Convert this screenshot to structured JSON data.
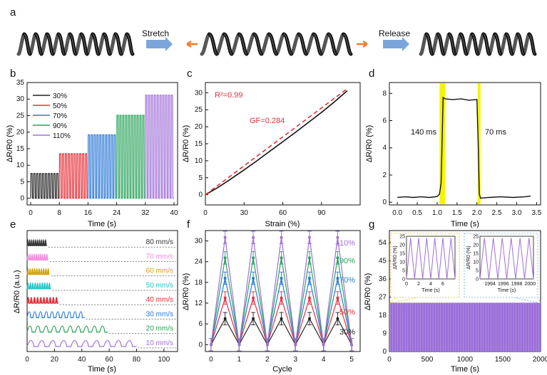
{
  "colors": {
    "black": "#222222",
    "red": "#e8303a",
    "blue": "#2a78d6",
    "green": "#28a35a",
    "purple": "#a070d8",
    "arrow_blue": "#7aa6dc",
    "arrow_orange": "#ef7d2e",
    "highlight": "#f5f500",
    "g_fill": "#9b6ed8",
    "e_colors": [
      "#333333",
      "#f08ee0",
      "#d4a000",
      "#20c6c6",
      "#e8303a",
      "#2a78d6",
      "#28a35a",
      "#a070d8"
    ]
  },
  "panel_a": {
    "label": "a",
    "stretch_label": "Stretch",
    "release_label": "Release"
  },
  "chart_data": [
    {
      "panel": "b",
      "type": "line",
      "xlabel": "Time (s)",
      "ylabel": "ΔR/R0 (%)",
      "xlim": [
        -1,
        41
      ],
      "ylim": [
        -2,
        35
      ],
      "xticks": [
        0,
        8,
        16,
        24,
        32,
        40
      ],
      "yticks": [
        0,
        5,
        10,
        15,
        20,
        25,
        30,
        35
      ],
      "legend": [
        "30%",
        "50%",
        "70%",
        "90%",
        "110%"
      ],
      "legend_position": "top-left",
      "series": [
        {
          "name": "30%",
          "t_start": 0,
          "t_end": 8,
          "peak": 7.5,
          "cycles": 10
        },
        {
          "name": "50%",
          "t_start": 8,
          "t_end": 16,
          "peak": 13.5,
          "cycles": 10
        },
        {
          "name": "70%",
          "t_start": 16,
          "t_end": 24,
          "peak": 19.2,
          "cycles": 10
        },
        {
          "name": "90%",
          "t_start": 24,
          "t_end": 32,
          "peak": 25.1,
          "cycles": 10
        },
        {
          "name": "110%",
          "t_start": 32,
          "t_end": 40,
          "peak": 31.2,
          "cycles": 10
        }
      ]
    },
    {
      "panel": "c",
      "type": "line",
      "xlabel": "Strain (%)",
      "ylabel": "ΔR/R0 (%)",
      "xlim": [
        0,
        120
      ],
      "ylim": [
        -3,
        33
      ],
      "xticks": [
        0,
        30,
        60,
        90
      ],
      "yticks": [
        0,
        5,
        10,
        15,
        20,
        25,
        30
      ],
      "annotation_r2": "R²=0.99",
      "annotation_gf": "GF=0.284",
      "series": [
        {
          "name": "measured",
          "x": [
            0,
            10,
            20,
            30,
            40,
            50,
            60,
            70,
            80,
            90,
            100,
            110
          ],
          "y": [
            0,
            2.2,
            4.7,
            7.3,
            10.0,
            12.8,
            15.6,
            18.4,
            21.3,
            24.2,
            27.3,
            30.6
          ]
        },
        {
          "name": "fit",
          "x": [
            0,
            110
          ],
          "y": [
            0,
            31.2
          ]
        }
      ]
    },
    {
      "panel": "d",
      "type": "line",
      "xlabel": "Time (s)",
      "ylabel": "ΔR/R0 (%)",
      "xlim": [
        -0.2,
        3.6
      ],
      "ylim": [
        -0.2,
        8.8
      ],
      "xticks": [
        0.0,
        0.5,
        1.0,
        1.5,
        2.0,
        2.5,
        3.0,
        3.5
      ],
      "yticks": [
        0,
        2,
        4,
        6,
        8
      ],
      "annotation_rise": "140 ms",
      "annotation_fall": "70 ms",
      "highlight_ranges": [
        [
          1.06,
          1.2
        ],
        [
          2.02,
          2.09
        ]
      ],
      "series": [
        {
          "name": "response",
          "x": [
            0,
            0.2,
            0.4,
            0.6,
            0.8,
            1.0,
            1.06,
            1.1,
            1.15,
            1.2,
            1.4,
            1.6,
            1.8,
            2.0,
            2.03,
            2.06,
            2.09,
            2.3,
            2.6,
            2.9,
            3.2,
            3.35
          ],
          "y": [
            0.35,
            0.4,
            0.35,
            0.4,
            0.35,
            0.42,
            0.6,
            1.4,
            7.7,
            7.6,
            7.55,
            7.6,
            7.5,
            7.55,
            4.5,
            0.6,
            0.3,
            0.35,
            0.4,
            0.35,
            0.4,
            0.45
          ]
        }
      ]
    },
    {
      "panel": "e",
      "type": "line",
      "xlabel": "Time (s)",
      "ylabel": "ΔR/R0 (a.u.)",
      "xlim": [
        0,
        110
      ],
      "xticks": [
        0,
        20,
        40,
        60,
        80,
        100
      ],
      "series": [
        {
          "name": "80 mm/s",
          "duration": 14.5,
          "cycles": 10
        },
        {
          "name": "70 mm/s",
          "duration": 15.5,
          "cycles": 10
        },
        {
          "name": "60 mm/s",
          "duration": 16.5,
          "cycles": 10
        },
        {
          "name": "50 mm/s",
          "duration": 17.5,
          "cycles": 10
        },
        {
          "name": "40 mm/s",
          "duration": 23,
          "cycles": 10
        },
        {
          "name": "30 mm/s",
          "duration": 42,
          "cycles": 10
        },
        {
          "name": "20 mm/s",
          "duration": 59,
          "cycles": 10
        },
        {
          "name": "10 mm/s",
          "duration": 80,
          "cycles": 10
        }
      ]
    },
    {
      "panel": "f",
      "type": "line",
      "xlabel": "Cycle",
      "ylabel": "ΔR/R0 (%)",
      "xlim": [
        -0.2,
        5.3
      ],
      "ylim": [
        -2,
        33
      ],
      "xticks": [
        0,
        1,
        2,
        3,
        4,
        5
      ],
      "yticks": [
        0,
        6,
        12,
        18,
        24,
        30
      ],
      "series": [
        {
          "name": "30%",
          "x": [
            0,
            0.5,
            1,
            1.5,
            2,
            2.5,
            3,
            3.5,
            4,
            4.5,
            5
          ],
          "y": [
            0,
            7.5,
            0,
            7.5,
            0,
            7.5,
            0,
            7.5,
            0,
            7.5,
            0
          ],
          "err": 1.8
        },
        {
          "name": "50%",
          "x": [
            0,
            0.5,
            1,
            1.5,
            2,
            2.5,
            3,
            3.5,
            4,
            4.5,
            5
          ],
          "y": [
            0,
            13.5,
            0,
            13.5,
            0,
            13.5,
            0,
            13.5,
            0,
            13.5,
            0
          ],
          "err": 1.8
        },
        {
          "name": "70%",
          "x": [
            0,
            0.5,
            1,
            1.5,
            2,
            2.5,
            3,
            3.5,
            4,
            4.5,
            5
          ],
          "y": [
            0,
            19.2,
            0,
            19.2,
            0,
            19.2,
            0,
            19.2,
            0,
            19.2,
            0
          ],
          "err": 1.8
        },
        {
          "name": "90%",
          "x": [
            0,
            0.5,
            1,
            1.5,
            2,
            2.5,
            3,
            3.5,
            4,
            4.5,
            5
          ],
          "y": [
            0,
            25.1,
            0,
            25.1,
            0,
            25.1,
            0,
            25.1,
            0,
            25.1,
            0
          ],
          "err": 1.8
        },
        {
          "name": "110%",
          "x": [
            0,
            0.5,
            1,
            1.5,
            2,
            2.5,
            3,
            3.5,
            4,
            4.5,
            5
          ],
          "y": [
            0,
            31.0,
            0,
            31.0,
            0,
            31.0,
            0,
            31.0,
            0,
            31.0,
            0
          ],
          "err": 1.8
        }
      ]
    },
    {
      "panel": "g",
      "type": "area",
      "xlabel": "Time (s)",
      "ylabel": "ΔR/R0 (%)",
      "xlim": [
        0,
        2000
      ],
      "ylim": [
        0,
        60
      ],
      "xticks": [
        0,
        500,
        1000,
        1500,
        2000
      ],
      "yticks": [
        0,
        9,
        18,
        27,
        36,
        45,
        54
      ],
      "series": [
        {
          "name": "cyclic",
          "x_range": [
            0,
            2000
          ],
          "peak": 24.2
        }
      ],
      "insets": [
        {
          "xlabel": "Time (s)",
          "ylabel": "ΔR/R0 (%)",
          "xlim": [
            0,
            8
          ],
          "ylim": [
            0,
            25
          ],
          "xticks": [
            0,
            2,
            4,
            6
          ],
          "yticks": [
            0,
            5,
            10,
            15,
            20,
            25
          ],
          "peak": 24,
          "cycles": 6
        },
        {
          "xlabel": "Time (s)",
          "ylabel": "ΔR/R0 (%)",
          "xlim": [
            1992.5,
            2000.5
          ],
          "ylim": [
            0,
            25
          ],
          "xticks": [
            1994,
            1996,
            1998,
            2000
          ],
          "yticks": [
            0,
            5,
            10,
            15,
            20,
            25
          ],
          "peak": 24,
          "cycles": 6
        }
      ]
    }
  ]
}
